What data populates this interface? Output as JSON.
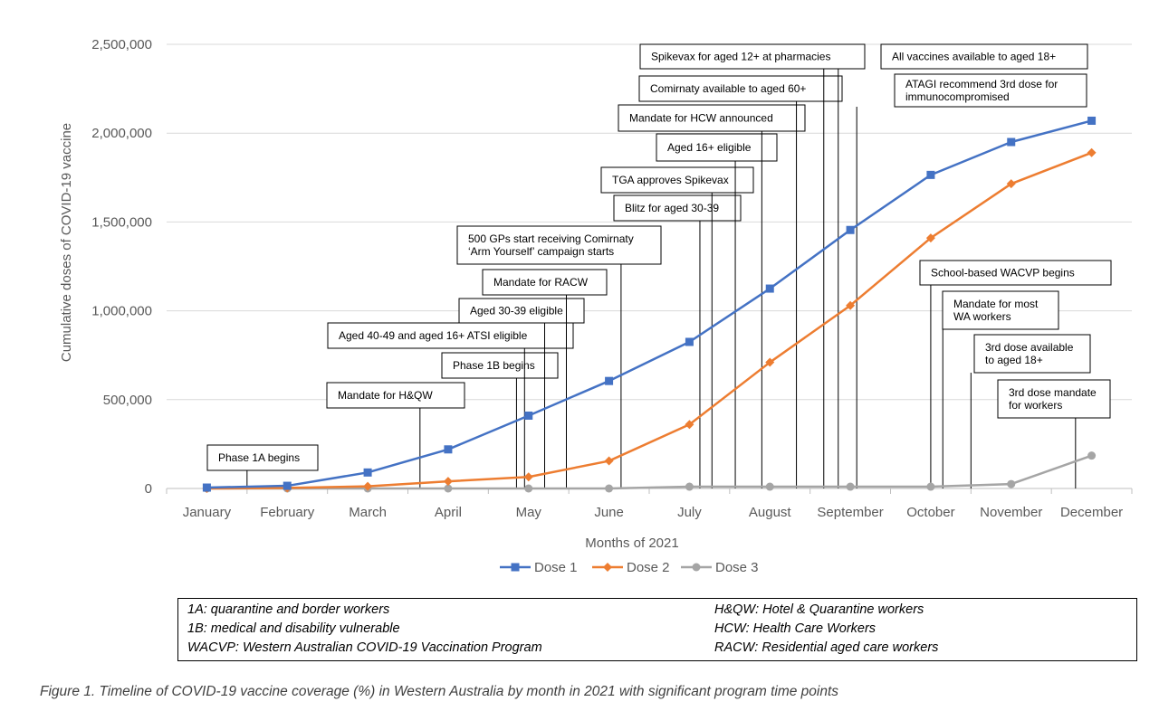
{
  "chart_data": {
    "type": "line",
    "title": "",
    "xlabel": "Months of 2021",
    "ylabel": "Cumulative doses of COVID-19 vaccine",
    "ylim": [
      0,
      2500000
    ],
    "yticks": [
      "0",
      "500,000",
      "1,000,000",
      "1,500,000",
      "2,000,000",
      "2,500,000"
    ],
    "ytick_values": [
      0,
      500000,
      1000000,
      1500000,
      2000000,
      2500000
    ],
    "categories": [
      "January",
      "February",
      "March",
      "April",
      "May",
      "June",
      "July",
      "August",
      "September",
      "October",
      "November",
      "December"
    ],
    "grid": "horizontal",
    "legend_position": "bottom",
    "series": [
      {
        "name": "Dose 1",
        "color": "#4472C4",
        "marker": "square",
        "values": [
          5000,
          15000,
          90000,
          220000,
          410000,
          605000,
          825000,
          1125000,
          1455000,
          1765000,
          1950000,
          2070000
        ]
      },
      {
        "name": "Dose 2",
        "color": "#ED7D31",
        "marker": "diamond",
        "values": [
          0,
          3000,
          12000,
          40000,
          65000,
          155000,
          360000,
          710000,
          1030000,
          1410000,
          1715000,
          1890000
        ]
      },
      {
        "name": "Dose 3",
        "color": "#A5A5A5",
        "marker": "circle",
        "values": [
          0,
          0,
          0,
          0,
          0,
          0,
          10000,
          10000,
          10000,
          10000,
          25000,
          185000
        ]
      }
    ],
    "annotations": [
      {
        "lines": [
          "Phase 1A begins"
        ],
        "month_pos": 1.0,
        "value": 0
      },
      {
        "lines": [
          "Mandate for H&QW"
        ],
        "month_pos": 3.15,
        "value": 0
      },
      {
        "lines": [
          "Phase 1B begins"
        ],
        "month_pos": 4.35,
        "value": 0
      },
      {
        "lines": [
          "Aged 40-49 and aged 16+ ATSI eligible"
        ],
        "month_pos": 4.45,
        "value": 0
      },
      {
        "lines": [
          "Aged 30-39 eligible"
        ],
        "month_pos": 4.7,
        "value": 0
      },
      {
        "lines": [
          "Mandate for RACW"
        ],
        "month_pos": 4.97,
        "value": 0
      },
      {
        "lines": [
          "500 GPs start receiving Comirnaty",
          "‘Arm Yourself’ campaign starts"
        ],
        "month_pos": 5.65,
        "value": 0
      },
      {
        "lines": [
          "Blitz for aged 30-39"
        ],
        "month_pos": 6.63,
        "value": 0
      },
      {
        "lines": [
          "TGA approves Spikevax"
        ],
        "month_pos": 6.78,
        "value": 0
      },
      {
        "lines": [
          "Aged 16+ eligible"
        ],
        "month_pos": 7.07,
        "value": 0
      },
      {
        "lines": [
          "Mandate for HCW announced"
        ],
        "month_pos": 7.4,
        "value": 0
      },
      {
        "lines": [
          "Comirnaty available to aged 60+"
        ],
        "month_pos": 7.83,
        "value": 0
      },
      {
        "lines": [
          "Spikevax for aged 12+ at pharmacies"
        ],
        "month_pos": 8.17,
        "value": 0
      },
      {
        "lines": [
          "All vaccines available to aged 18+"
        ],
        "month_pos": 8.35,
        "value": 0
      },
      {
        "lines": [
          "ATAGI recommend 3rd dose for",
          "immunocompromised"
        ],
        "month_pos": 8.58,
        "value": 0
      },
      {
        "lines": [
          "School-based WACVP begins"
        ],
        "month_pos": 9.5,
        "value": 0
      },
      {
        "lines": [
          "Mandate for most",
          "WA workers"
        ],
        "month_pos": 9.65,
        "value": 0
      },
      {
        "lines": [
          "3rd dose available",
          "to aged 18+"
        ],
        "month_pos": 10.0,
        "value": 0
      },
      {
        "lines": [
          "3rd dose mandate",
          "for workers"
        ],
        "month_pos": 11.3,
        "value": 0
      }
    ]
  },
  "glossary": {
    "left": [
      "1A: quarantine and border workers",
      "1B: medical and disability vulnerable",
      "WACVP: Western Australian COVID-19 Vaccination Program"
    ],
    "right": [
      "H&QW: Hotel & Quarantine workers",
      "HCW: Health Care Workers",
      "RACW: Residential aged care workers"
    ]
  },
  "caption": "Figure 1. Timeline of COVID-19 vaccine coverage (%) in Western Australia by month in 2021 with significant program time points"
}
